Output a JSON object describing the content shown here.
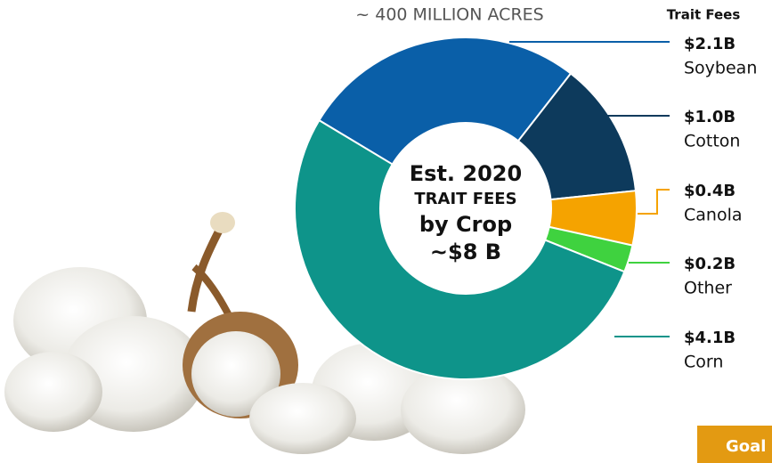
{
  "chart_data": {
    "type": "donut",
    "subtitle": "~ 400 MILLION ACRES",
    "legend_title": "Trait Fees",
    "center_text": [
      "Est. 2020",
      "TRAIT FEES",
      "by Crop",
      "~$8 B"
    ],
    "categories": [
      "Soybean",
      "Cotton",
      "Canola",
      "Other",
      "Corn"
    ],
    "values": [
      2.1,
      1.0,
      0.4,
      0.2,
      4.1
    ],
    "value_labels": [
      "$2.1B",
      "$1.0B",
      "$0.4B",
      "$0.2B",
      "$4.1B"
    ],
    "colors": [
      "#0a5fa8",
      "#0d3a5c",
      "#f5a300",
      "#3fd23f",
      "#0e948a"
    ]
  },
  "button_label": "Goal"
}
